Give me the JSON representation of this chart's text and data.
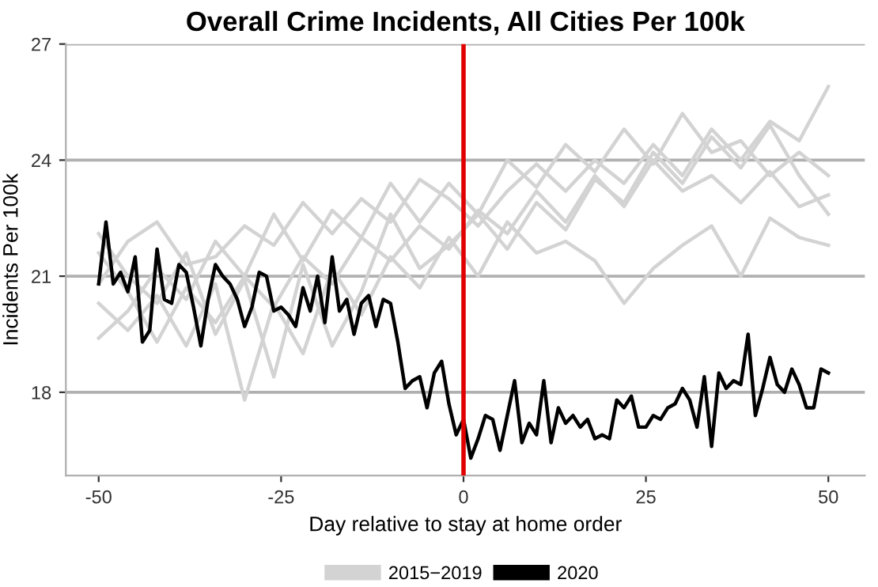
{
  "chart_data": {
    "type": "line",
    "title": "Overall Crime Incidents, All Cities Per 100k",
    "xlabel": "Day relative to stay at home order",
    "ylabel": "Incidents Per 100k",
    "xlim": [
      -54.5,
      55
    ],
    "xticks": [
      -50,
      -25,
      0,
      25,
      50
    ],
    "ylim": [
      15.85,
      27
    ],
    "yticks": [
      18,
      21,
      24,
      27
    ],
    "grid": "y",
    "legend": "bottom",
    "ref_lines": [
      {
        "axis": "x",
        "value": 0,
        "color": "#e00000"
      }
    ],
    "series": [
      {
        "name": "2015−2019",
        "color": "#d3d3d3",
        "x": [
          -50,
          -46,
          -42,
          -38,
          -34,
          -30,
          -26,
          -22,
          -18,
          -14,
          -10,
          -6,
          -2,
          2,
          6,
          10,
          14,
          18,
          22,
          26,
          30,
          34,
          38,
          42,
          46,
          50
        ],
        "values": [
          20.8,
          21.9,
          22.4,
          21.3,
          21.5,
          22.3,
          21.8,
          22.9,
          22.1,
          23.0,
          22.4,
          23.5,
          23.0,
          22.3,
          23.2,
          23.9,
          23.2,
          24.0,
          23.4,
          24.4,
          23.6,
          24.8,
          24.0,
          25.0,
          24.5,
          25.9
        ]
      },
      {
        "color": "#d3d3d3",
        "x": [
          -50,
          -46,
          -42,
          -38,
          -34,
          -30,
          -26,
          -22,
          -18,
          -14,
          -10,
          -6,
          -2,
          2,
          6,
          10,
          14,
          18,
          22,
          26,
          30,
          34,
          38,
          42,
          46,
          50
        ],
        "values": [
          19.4,
          20.1,
          21.2,
          20.4,
          21.9,
          21.0,
          22.6,
          21.4,
          22.7,
          22.0,
          23.4,
          22.4,
          23.4,
          22.6,
          24.0,
          23.3,
          24.4,
          23.7,
          24.8,
          23.9,
          25.2,
          24.2,
          24.5,
          23.6,
          24.2,
          23.6
        ]
      },
      {
        "color": "#d3d3d3",
        "x": [
          -50,
          -46,
          -42,
          -38,
          -34,
          -30,
          -26,
          -22,
          -18,
          -14,
          -10,
          -6,
          -2,
          2,
          6,
          10,
          14,
          18,
          22,
          26,
          30,
          34,
          38,
          42,
          46,
          50
        ],
        "values": [
          21.6,
          20.6,
          19.3,
          20.7,
          19.8,
          21.0,
          20.2,
          21.5,
          20.8,
          22.0,
          21.4,
          22.3,
          21.7,
          22.7,
          22.1,
          23.2,
          22.4,
          23.6,
          22.8,
          24.0,
          23.2,
          23.6,
          22.9,
          23.7,
          22.8,
          23.1
        ]
      },
      {
        "color": "#d3d3d3",
        "x": [
          -50,
          -46,
          -42,
          -38,
          -34,
          -30,
          -26,
          -22,
          -18,
          -14,
          -10,
          -6,
          -2,
          2,
          6,
          10,
          14,
          18,
          22,
          26,
          30,
          34,
          38,
          42,
          46,
          50
        ],
        "values": [
          20.3,
          19.6,
          20.5,
          19.2,
          20.8,
          17.8,
          20.3,
          19.0,
          21.2,
          20.0,
          21.5,
          20.7,
          22.0,
          21.0,
          22.4,
          21.6,
          21.9,
          21.4,
          20.3,
          21.2,
          21.8,
          22.3,
          21.0,
          22.5,
          22.0,
          21.8
        ]
      },
      {
        "color": "#d3d3d3",
        "x": [
          -50,
          -46,
          -42,
          -38,
          -34,
          -30,
          -26,
          -22,
          -18,
          -14,
          -10,
          -6,
          -2,
          2,
          6,
          10,
          14,
          18,
          22,
          26,
          30,
          34,
          38,
          42,
          46,
          50
        ],
        "values": [
          22.1,
          21.0,
          20.3,
          21.6,
          19.5,
          20.9,
          18.4,
          21.3,
          19.2,
          20.6,
          22.6,
          21.2,
          21.8,
          22.6,
          21.7,
          22.9,
          22.2,
          23.5,
          22.9,
          24.2,
          23.4,
          24.6,
          23.8,
          24.9,
          23.6,
          22.6
        ]
      },
      {
        "name": "2020",
        "color": "#000000",
        "x": [
          -50,
          -49,
          -48,
          -47,
          -46,
          -45,
          -44,
          -43,
          -42,
          -41,
          -40,
          -39,
          -38,
          -37,
          -36,
          -35,
          -34,
          -33,
          -32,
          -31,
          -30,
          -29,
          -28,
          -27,
          -26,
          -25,
          -24,
          -23,
          -22,
          -21,
          -20,
          -19,
          -18,
          -17,
          -16,
          -15,
          -14,
          -13,
          -12,
          -11,
          -10,
          -9,
          -8,
          -7,
          -6,
          -5,
          -4,
          -3,
          -2,
          -1,
          0,
          1,
          2,
          3,
          4,
          5,
          6,
          7,
          8,
          9,
          10,
          11,
          12,
          13,
          14,
          15,
          16,
          17,
          18,
          19,
          20,
          21,
          22,
          23,
          24,
          25,
          26,
          27,
          28,
          29,
          30,
          31,
          32,
          33,
          34,
          35,
          36,
          37,
          38,
          39,
          40,
          41,
          42,
          43,
          44,
          45,
          46,
          47,
          48,
          49,
          50
        ],
        "values": [
          20.8,
          22.4,
          20.8,
          21.1,
          20.6,
          21.5,
          19.3,
          19.6,
          21.7,
          20.4,
          20.3,
          21.3,
          21.1,
          20.2,
          19.2,
          20.4,
          21.3,
          21.0,
          20.8,
          20.4,
          19.7,
          20.2,
          21.1,
          21.0,
          20.1,
          20.2,
          20.0,
          19.7,
          20.7,
          20.1,
          21.0,
          19.8,
          21.5,
          20.1,
          20.4,
          19.5,
          20.3,
          20.5,
          19.7,
          20.4,
          20.3,
          19.3,
          18.1,
          18.3,
          18.4,
          17.6,
          18.5,
          18.8,
          17.7,
          16.9,
          17.3,
          16.3,
          16.8,
          17.4,
          17.3,
          16.5,
          17.4,
          18.3,
          16.7,
          17.2,
          16.9,
          18.3,
          16.7,
          17.6,
          17.2,
          17.4,
          17.1,
          17.3,
          16.8,
          16.9,
          16.8,
          17.8,
          17.6,
          17.9,
          17.1,
          17.1,
          17.4,
          17.3,
          17.6,
          17.7,
          18.1,
          17.8,
          17.1,
          18.4,
          16.6,
          18.5,
          18.1,
          18.3,
          18.2,
          19.5,
          17.4,
          18.1,
          18.9,
          18.2,
          18.0,
          18.6,
          18.2,
          17.6,
          17.6,
          18.6,
          18.5
        ]
      }
    ]
  }
}
